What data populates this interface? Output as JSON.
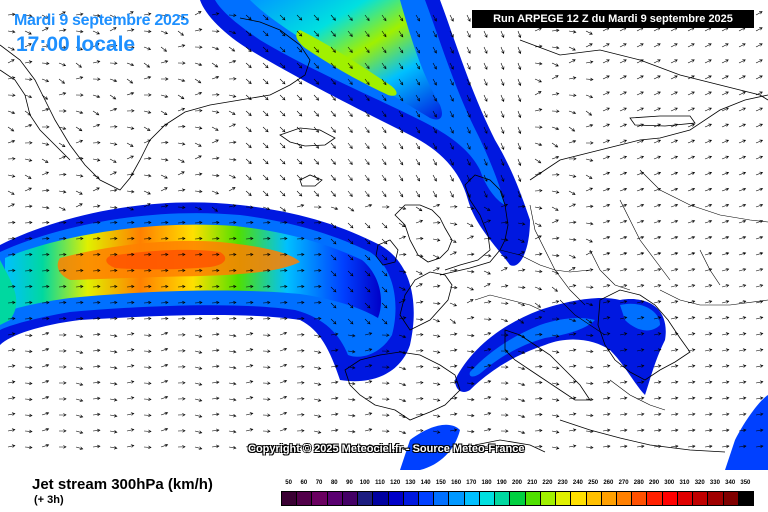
{
  "header": {
    "date": "Mardi 9 septembre 2025",
    "time": "17:00 locale",
    "run": "Run ARPEGE 12 Z du Mardi 9 septembre 2025"
  },
  "copyright": "Copyright © 2025 Meteociel.fr - Source Meteo-France",
  "footer": {
    "parameter": "Jet stream 300hPa (km/h)",
    "lead": "(+ 3h)"
  },
  "legend": {
    "values": [
      "50",
      "60",
      "70",
      "80",
      "90",
      "100",
      "110",
      "120",
      "130",
      "140",
      "150",
      "160",
      "170",
      "180",
      "190",
      "200",
      "210",
      "220",
      "230",
      "240",
      "250",
      "260",
      "270",
      "280",
      "290",
      "300",
      "310",
      "320",
      "330",
      "340",
      "350"
    ],
    "colors": [
      "#3a0033",
      "#52004a",
      "#6a0060",
      "#5a0070",
      "#440066",
      "#1c1c80",
      "#0000a0",
      "#0000c8",
      "#0018e0",
      "#0040ff",
      "#0070ff",
      "#0098ff",
      "#00c0ff",
      "#00e0e0",
      "#00d8a0",
      "#00d040",
      "#50e000",
      "#a0f000",
      "#e0f000",
      "#ffe000",
      "#ffc000",
      "#ffa000",
      "#ff8000",
      "#ff5000",
      "#ff2000",
      "#ff0000",
      "#e00000",
      "#c00000",
      "#a00000",
      "#800000",
      "#000000"
    ]
  }
}
